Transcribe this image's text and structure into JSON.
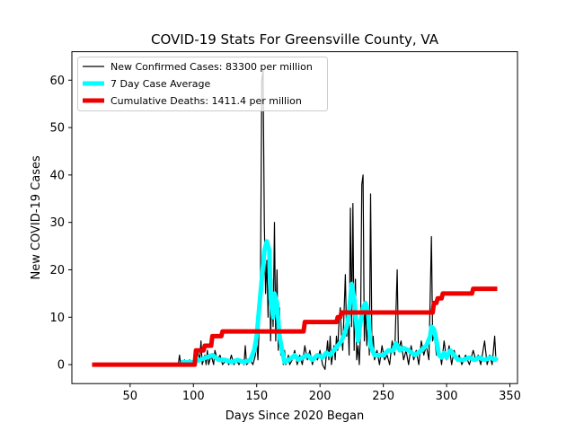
{
  "chart_data": {
    "type": "line",
    "title": "COVID-19 Stats For Greensville County, VA",
    "xlabel": "Days Since 2020 Began",
    "ylabel": "New COVID-19 Cases",
    "xlim": [
      4,
      356
    ],
    "ylim": [
      -4,
      66
    ],
    "xticks": [
      50,
      100,
      150,
      200,
      250,
      300,
      350
    ],
    "yticks": [
      0,
      10,
      20,
      30,
      40,
      50,
      60
    ],
    "grid": false,
    "legend_position": "top-left",
    "series": [
      {
        "name": "New Confirmed Cases: 83300 per million",
        "color": "#000000",
        "points": [
          [
            20,
            0
          ],
          [
            88,
            0
          ],
          [
            89,
            2
          ],
          [
            90,
            0
          ],
          [
            93,
            1
          ],
          [
            95,
            0
          ],
          [
            97,
            1
          ],
          [
            99,
            0
          ],
          [
            103,
            3
          ],
          [
            105,
            1
          ],
          [
            106,
            5
          ],
          [
            107,
            0
          ],
          [
            109,
            2
          ],
          [
            110,
            0
          ],
          [
            111,
            3
          ],
          [
            112,
            0
          ],
          [
            114,
            2
          ],
          [
            116,
            0
          ],
          [
            117,
            3
          ],
          [
            119,
            1
          ],
          [
            121,
            2
          ],
          [
            123,
            0
          ],
          [
            126,
            1
          ],
          [
            128,
            0
          ],
          [
            130,
            2
          ],
          [
            132,
            0
          ],
          [
            134,
            1
          ],
          [
            136,
            0
          ],
          [
            138,
            1
          ],
          [
            140,
            0
          ],
          [
            141,
            4
          ],
          [
            142,
            0
          ],
          [
            145,
            1
          ],
          [
            147,
            0
          ],
          [
            149,
            2
          ],
          [
            150,
            5
          ],
          [
            151,
            1
          ],
          [
            152,
            8
          ],
          [
            153,
            20
          ],
          [
            154,
            60
          ],
          [
            155,
            62
          ],
          [
            156,
            30
          ],
          [
            157,
            15
          ],
          [
            158,
            22
          ],
          [
            159,
            10
          ],
          [
            160,
            25
          ],
          [
            161,
            5
          ],
          [
            162,
            18
          ],
          [
            163,
            8
          ],
          [
            164,
            30
          ],
          [
            165,
            5
          ],
          [
            166,
            20
          ],
          [
            167,
            3
          ],
          [
            168,
            12
          ],
          [
            169,
            2
          ],
          [
            170,
            5
          ],
          [
            171,
            0
          ],
          [
            172,
            3
          ],
          [
            173,
            0
          ],
          [
            175,
            2
          ],
          [
            176,
            0
          ],
          [
            178,
            1
          ],
          [
            180,
            3
          ],
          [
            182,
            0
          ],
          [
            184,
            2
          ],
          [
            186,
            0
          ],
          [
            188,
            4
          ],
          [
            190,
            1
          ],
          [
            192,
            3
          ],
          [
            194,
            0
          ],
          [
            196,
            2
          ],
          [
            198,
            1
          ],
          [
            200,
            3
          ],
          [
            202,
            0
          ],
          [
            204,
            -1
          ],
          [
            205,
            2
          ],
          [
            206,
            5
          ],
          [
            207,
            1
          ],
          [
            208,
            6
          ],
          [
            209,
            0
          ],
          [
            211,
            4
          ],
          [
            212,
            1
          ],
          [
            213,
            6
          ],
          [
            214,
            3
          ],
          [
            215,
            9
          ],
          [
            216,
            12
          ],
          [
            217,
            6
          ],
          [
            218,
            3
          ],
          [
            220,
            19
          ],
          [
            221,
            6
          ],
          [
            222,
            10
          ],
          [
            223,
            2
          ],
          [
            224,
            33
          ],
          [
            225,
            8
          ],
          [
            226,
            34
          ],
          [
            227,
            3
          ],
          [
            228,
            18
          ],
          [
            229,
            1
          ],
          [
            230,
            4
          ],
          [
            231,
            0
          ],
          [
            232,
            7
          ],
          [
            233,
            38
          ],
          [
            234,
            40
          ],
          [
            235,
            5
          ],
          [
            236,
            12
          ],
          [
            237,
            4
          ],
          [
            238,
            10
          ],
          [
            239,
            2
          ],
          [
            240,
            36
          ],
          [
            241,
            3
          ],
          [
            242,
            6
          ],
          [
            243,
            1
          ],
          [
            245,
            3
          ],
          [
            247,
            0
          ],
          [
            249,
            4
          ],
          [
            251,
            1
          ],
          [
            253,
            2
          ],
          [
            255,
            0
          ],
          [
            257,
            5
          ],
          [
            259,
            2
          ],
          [
            261,
            20
          ],
          [
            262,
            3
          ],
          [
            264,
            5
          ],
          [
            266,
            1
          ],
          [
            268,
            3
          ],
          [
            270,
            0
          ],
          [
            272,
            4
          ],
          [
            274,
            1
          ],
          [
            276,
            3
          ],
          [
            278,
            0
          ],
          [
            280,
            5
          ],
          [
            282,
            2
          ],
          [
            284,
            4
          ],
          [
            286,
            1
          ],
          [
            288,
            27
          ],
          [
            289,
            5
          ],
          [
            290,
            7
          ],
          [
            292,
            2
          ],
          [
            294,
            4
          ],
          [
            296,
            0
          ],
          [
            298,
            5
          ],
          [
            300,
            1
          ],
          [
            302,
            4
          ],
          [
            304,
            0
          ],
          [
            306,
            3
          ],
          [
            308,
            1
          ],
          [
            310,
            2
          ],
          [
            312,
            0
          ],
          [
            315,
            2
          ],
          [
            318,
            0
          ],
          [
            321,
            3
          ],
          [
            323,
            1
          ],
          [
            325,
            2
          ],
          [
            327,
            0
          ],
          [
            330,
            5
          ],
          [
            332,
            0
          ],
          [
            334,
            2
          ],
          [
            336,
            0
          ],
          [
            338,
            6
          ],
          [
            339,
            1
          ],
          [
            340,
            1
          ]
        ]
      },
      {
        "name": "7 Day Case Average",
        "color": "#00ffff",
        "points": [
          [
            90,
            0.5
          ],
          [
            100,
            0.5
          ],
          [
            105,
            1
          ],
          [
            110,
            1.5
          ],
          [
            115,
            2
          ],
          [
            120,
            1
          ],
          [
            125,
            1
          ],
          [
            130,
            0.5
          ],
          [
            135,
            1
          ],
          [
            140,
            0.5
          ],
          [
            145,
            1
          ],
          [
            148,
            3
          ],
          [
            150,
            6
          ],
          [
            152,
            12
          ],
          [
            154,
            18
          ],
          [
            156,
            24
          ],
          [
            158,
            26
          ],
          [
            160,
            24
          ],
          [
            161,
            14
          ],
          [
            163,
            10
          ],
          [
            164,
            15
          ],
          [
            166,
            13
          ],
          [
            168,
            6
          ],
          [
            170,
            3
          ],
          [
            172,
            0.5
          ],
          [
            175,
            1
          ],
          [
            178,
            1.5
          ],
          [
            180,
            2
          ],
          [
            183,
            1
          ],
          [
            186,
            1.5
          ],
          [
            190,
            2
          ],
          [
            194,
            1
          ],
          [
            198,
            2
          ],
          [
            202,
            1.5
          ],
          [
            205,
            2.5
          ],
          [
            208,
            2
          ],
          [
            211,
            3
          ],
          [
            214,
            4
          ],
          [
            217,
            5
          ],
          [
            220,
            7
          ],
          [
            222,
            9
          ],
          [
            224,
            14
          ],
          [
            225,
            17
          ],
          [
            227,
            14
          ],
          [
            229,
            8
          ],
          [
            230,
            5
          ],
          [
            232,
            9
          ],
          [
            234,
            12
          ],
          [
            236,
            13
          ],
          [
            238,
            11
          ],
          [
            240,
            4
          ],
          [
            243,
            2
          ],
          [
            246,
            2
          ],
          [
            250,
            2
          ],
          [
            254,
            3
          ],
          [
            258,
            3
          ],
          [
            260,
            4.5
          ],
          [
            263,
            3
          ],
          [
            266,
            3.5
          ],
          [
            270,
            3
          ],
          [
            275,
            2
          ],
          [
            280,
            3
          ],
          [
            284,
            4
          ],
          [
            287,
            6
          ],
          [
            288,
            8
          ],
          [
            290,
            7.5
          ],
          [
            292,
            5
          ],
          [
            294,
            2
          ],
          [
            296,
            1.5
          ],
          [
            298,
            2.5
          ],
          [
            300,
            1.5
          ],
          [
            303,
            3
          ],
          [
            306,
            2
          ],
          [
            309,
            1
          ],
          [
            313,
            1
          ],
          [
            318,
            1.5
          ],
          [
            322,
            1
          ],
          [
            326,
            1.5
          ],
          [
            330,
            1
          ],
          [
            335,
            1.5
          ],
          [
            338,
            1
          ],
          [
            340,
            1.5
          ]
        ]
      },
      {
        "name": "Cumulative Deaths: 1411.4 per million",
        "color": "#ee0000",
        "points": [
          [
            20,
            0
          ],
          [
            101,
            0
          ],
          [
            102,
            3
          ],
          [
            108,
            3
          ],
          [
            109,
            4
          ],
          [
            114,
            4
          ],
          [
            115,
            6
          ],
          [
            122,
            6
          ],
          [
            123,
            7
          ],
          [
            187,
            7
          ],
          [
            188,
            9
          ],
          [
            213,
            9
          ],
          [
            214,
            10
          ],
          [
            216,
            10
          ],
          [
            217,
            11
          ],
          [
            289,
            11
          ],
          [
            290,
            13
          ],
          [
            292,
            13
          ],
          [
            293,
            14
          ],
          [
            296,
            14
          ],
          [
            297,
            15
          ],
          [
            320,
            15
          ],
          [
            321,
            16
          ],
          [
            340,
            16
          ]
        ]
      }
    ]
  }
}
